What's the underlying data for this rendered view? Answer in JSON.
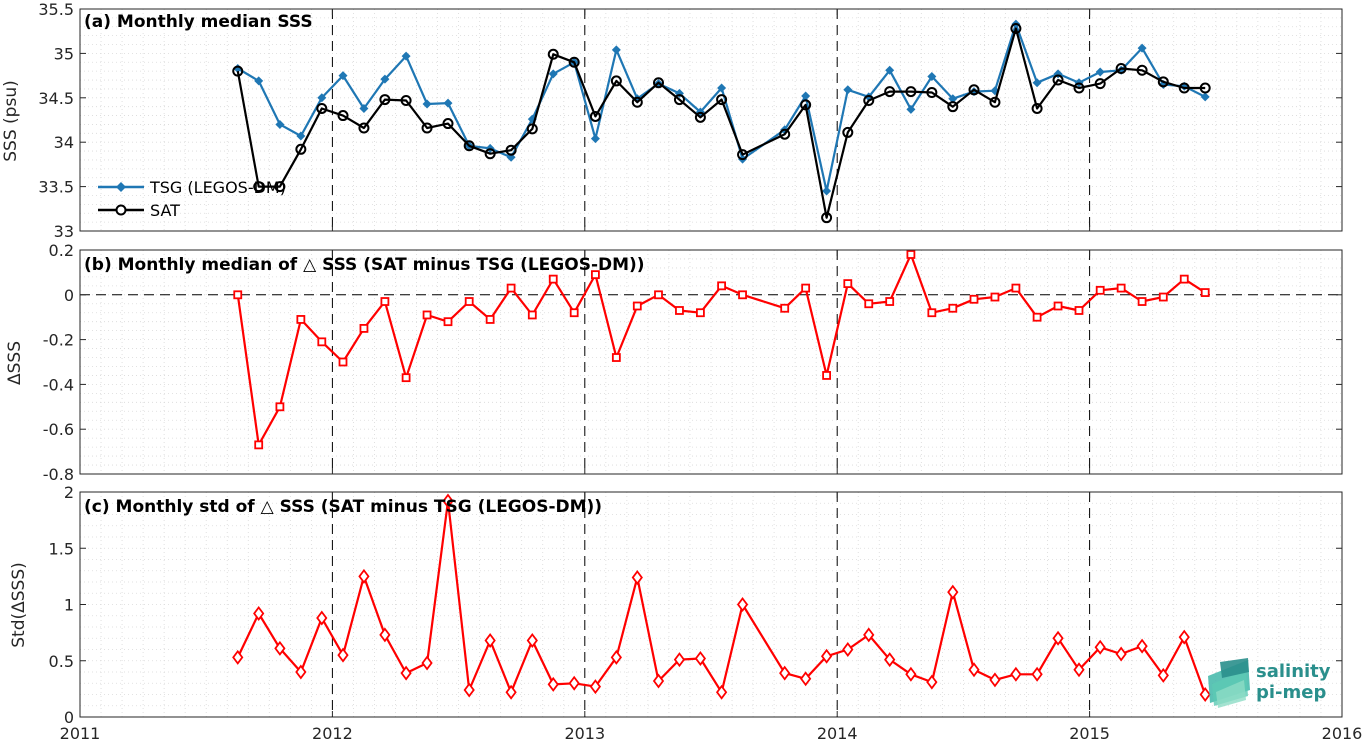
{
  "colors": {
    "tsg": "#1f77b4",
    "sat": "#000000",
    "diff": "#ff0000",
    "grid": "#d9d9d9",
    "axis": "#262626",
    "logo": "#2a8f8c"
  },
  "logo": {
    "line1": "salinity",
    "line2": "pi-mep"
  },
  "chart_data": [
    {
      "id": "a",
      "type": "line",
      "title": "(a) Monthly median SSS",
      "ylabel": "SSS (psu)",
      "xlabel": "",
      "xlim": [
        2011,
        2016
      ],
      "ylim": [
        33,
        35.5
      ],
      "xticks": [
        2011,
        2012,
        2013,
        2014,
        2015,
        2016
      ],
      "yticks": [
        33,
        33.5,
        34,
        34.5,
        35,
        35.5
      ],
      "ytick_labels": [
        "33",
        "33.5",
        "34",
        "34.5",
        "35",
        "35.5"
      ],
      "grid": true,
      "legend_position": "bottom-left",
      "x": [
        2011.625,
        2011.708,
        2011.792,
        2011.875,
        2011.958,
        2012.042,
        2012.125,
        2012.208,
        2012.292,
        2012.375,
        2012.458,
        2012.542,
        2012.625,
        2012.708,
        2012.792,
        2012.875,
        2012.958,
        2013.042,
        2013.125,
        2013.208,
        2013.292,
        2013.375,
        2013.458,
        2013.542,
        2013.625,
        2013.792,
        2013.875,
        2013.958,
        2014.042,
        2014.125,
        2014.208,
        2014.292,
        2014.375,
        2014.458,
        2014.542,
        2014.625,
        2014.708,
        2014.792,
        2014.875,
        2014.958,
        2015.042,
        2015.125,
        2015.208,
        2015.292,
        2015.375,
        2015.458
      ],
      "series": [
        {
          "name": "TSG (LEGOS-DM)",
          "marker": "dot",
          "values": [
            34.83,
            34.69,
            34.2,
            34.07,
            34.5,
            34.75,
            34.38,
            34.71,
            34.97,
            34.43,
            34.44,
            33.96,
            33.93,
            33.83,
            34.26,
            34.77,
            34.9,
            34.04,
            35.04,
            34.49,
            34.66,
            34.55,
            34.34,
            34.61,
            33.81,
            34.14,
            34.52,
            33.45,
            34.59,
            34.51,
            34.81,
            34.37,
            34.74,
            34.49,
            34.57,
            34.58,
            35.33,
            34.67,
            34.77,
            34.67,
            34.79,
            34.81,
            35.06,
            34.65,
            34.63,
            34.51
          ]
        },
        {
          "name": "SAT",
          "marker": "circle",
          "values": [
            34.8,
            33.5,
            33.5,
            33.92,
            34.38,
            34.3,
            34.16,
            34.48,
            34.47,
            34.16,
            34.21,
            33.96,
            33.87,
            33.91,
            34.15,
            34.99,
            34.9,
            34.29,
            34.69,
            34.45,
            34.67,
            34.48,
            34.28,
            34.48,
            33.86,
            34.09,
            34.42,
            33.15,
            34.11,
            34.47,
            34.57,
            34.57,
            34.56,
            34.4,
            34.59,
            34.45,
            35.28,
            34.38,
            34.7,
            34.61,
            34.66,
            34.83,
            34.81,
            34.68,
            34.61,
            34.61
          ]
        }
      ]
    },
    {
      "id": "b",
      "type": "line",
      "title": "(b) Monthly median of △ SSS (SAT minus TSG (LEGOS-DM))",
      "ylabel": "ΔSSS",
      "xlabel": "",
      "xlim": [
        2011,
        2016
      ],
      "ylim": [
        -0.8,
        0.2
      ],
      "xticks": [
        2011,
        2012,
        2013,
        2014,
        2015,
        2016
      ],
      "yticks": [
        -0.8,
        -0.6,
        -0.4,
        -0.2,
        0,
        0.2
      ],
      "ytick_labels": [
        "-0.8",
        "-0.6",
        "-0.4",
        "-0.2",
        "0",
        "0.2"
      ],
      "grid": true,
      "zero_line": true,
      "x": [
        2011.625,
        2011.708,
        2011.792,
        2011.875,
        2011.958,
        2012.042,
        2012.125,
        2012.208,
        2012.292,
        2012.375,
        2012.458,
        2012.542,
        2012.625,
        2012.708,
        2012.792,
        2012.875,
        2012.958,
        2013.042,
        2013.125,
        2013.208,
        2013.292,
        2013.375,
        2013.458,
        2013.542,
        2013.625,
        2013.792,
        2013.875,
        2013.958,
        2014.042,
        2014.125,
        2014.208,
        2014.292,
        2014.375,
        2014.458,
        2014.542,
        2014.625,
        2014.708,
        2014.792,
        2014.875,
        2014.958,
        2015.042,
        2015.125,
        2015.208,
        2015.292,
        2015.375,
        2015.458
      ],
      "series": [
        {
          "name": "",
          "marker": "square",
          "values": [
            0.0,
            -0.67,
            -0.5,
            -0.11,
            -0.21,
            -0.3,
            -0.15,
            -0.03,
            -0.37,
            -0.09,
            -0.12,
            -0.03,
            -0.11,
            0.03,
            -0.09,
            0.07,
            -0.08,
            0.09,
            -0.28,
            -0.05,
            0.0,
            -0.07,
            -0.08,
            0.04,
            0.0,
            -0.06,
            0.03,
            -0.36,
            0.05,
            -0.04,
            -0.03,
            0.18,
            -0.08,
            -0.06,
            -0.02,
            -0.01,
            0.03,
            -0.1,
            -0.05,
            -0.07,
            0.02,
            0.03,
            -0.03,
            -0.01,
            0.07,
            0.01
          ]
        }
      ]
    },
    {
      "id": "c",
      "type": "line",
      "title": "(c) Monthly std of △ SSS (SAT minus TSG (LEGOS-DM))",
      "ylabel": "Std(ΔSSS)",
      "xlabel": "",
      "xlim": [
        2011,
        2016
      ],
      "ylim": [
        0,
        2
      ],
      "xticks": [
        2011,
        2012,
        2013,
        2014,
        2015,
        2016
      ],
      "xtick_labels": [
        "2011",
        "2012",
        "2013",
        "2014",
        "2015",
        "2016"
      ],
      "yticks": [
        0,
        0.5,
        1,
        1.5,
        2
      ],
      "ytick_labels": [
        "0",
        "0.5",
        "1",
        "1.5",
        "2"
      ],
      "grid": true,
      "x": [
        2011.625,
        2011.708,
        2011.792,
        2011.875,
        2011.958,
        2012.042,
        2012.125,
        2012.208,
        2012.292,
        2012.375,
        2012.458,
        2012.542,
        2012.625,
        2012.708,
        2012.792,
        2012.875,
        2012.958,
        2013.042,
        2013.125,
        2013.208,
        2013.292,
        2013.375,
        2013.458,
        2013.542,
        2013.625,
        2013.792,
        2013.875,
        2013.958,
        2014.042,
        2014.125,
        2014.208,
        2014.292,
        2014.375,
        2014.458,
        2014.542,
        2014.625,
        2014.708,
        2014.792,
        2014.875,
        2014.958,
        2015.042,
        2015.125,
        2015.208,
        2015.292,
        2015.375,
        2015.458
      ],
      "series": [
        {
          "name": "",
          "marker": "diamond",
          "values": [
            0.53,
            0.92,
            0.61,
            0.4,
            0.88,
            0.55,
            1.25,
            0.73,
            0.39,
            0.48,
            1.92,
            0.24,
            0.68,
            0.22,
            0.68,
            0.29,
            0.3,
            0.27,
            0.53,
            1.24,
            0.32,
            0.51,
            0.52,
            0.22,
            1.0,
            0.39,
            0.34,
            0.54,
            0.6,
            0.73,
            0.51,
            0.38,
            0.31,
            1.11,
            0.42,
            0.33,
            0.38,
            0.38,
            0.7,
            0.42,
            0.62,
            0.56,
            0.63,
            0.37,
            0.71,
            0.2
          ]
        }
      ]
    }
  ]
}
